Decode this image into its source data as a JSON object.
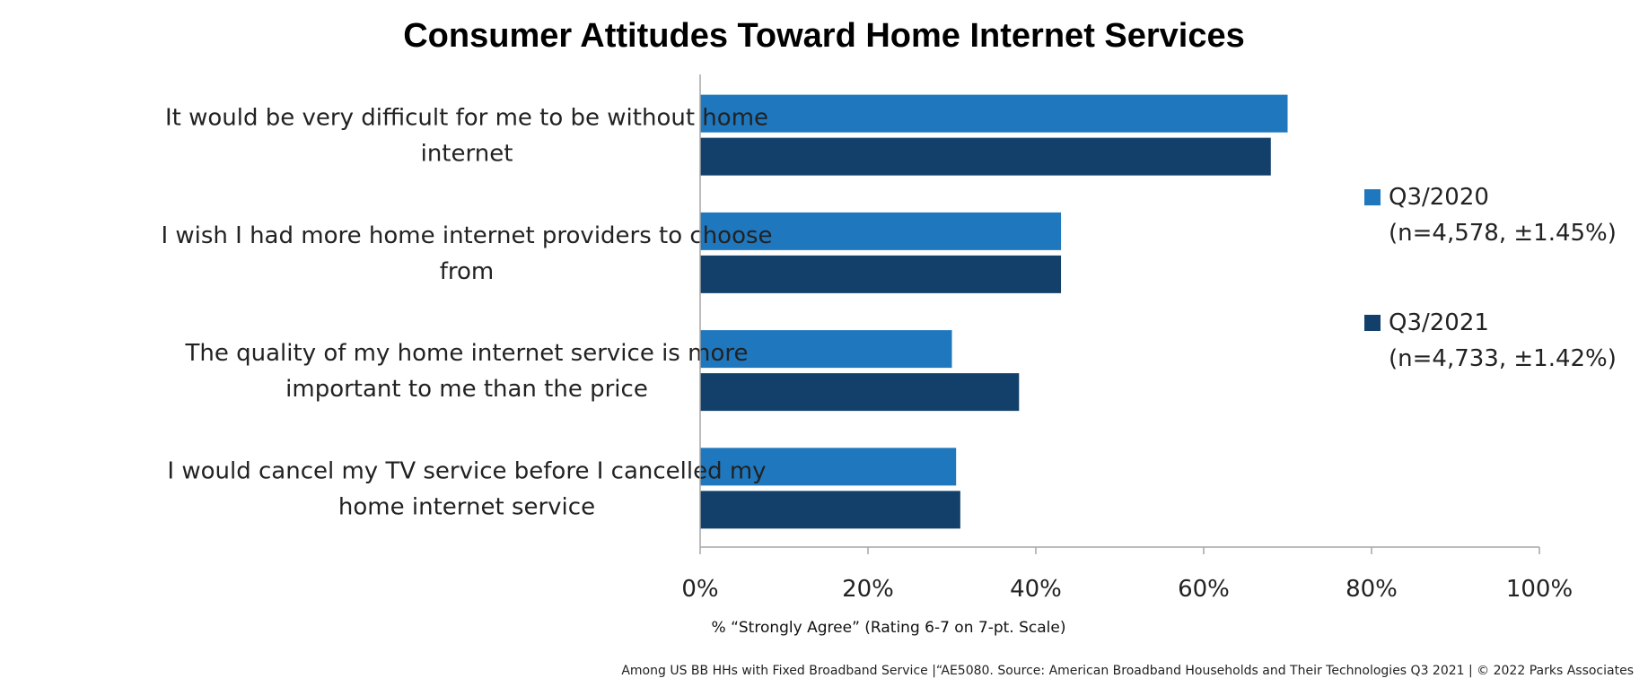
{
  "chart_data": {
    "type": "bar",
    "orientation": "horizontal",
    "title": "Consumer Attitudes Toward Home Internet Services",
    "xlabel": "% “Strongly Agree” (Rating 6-7 on 7-pt. Scale)",
    "ylabel": "",
    "xlim": [
      0,
      100
    ],
    "ticks": [
      "0%",
      "20%",
      "40%",
      "60%",
      "80%",
      "100%"
    ],
    "tick_values": [
      0,
      20,
      40,
      60,
      80,
      100
    ],
    "grid": false,
    "legend_position": "right",
    "categories": [
      [
        "It would be very difficult for me to be without home",
        "internet"
      ],
      [
        "I wish I had more home internet providers to choose",
        "from"
      ],
      [
        "The quality of my home internet service is more",
        "important to me than the price"
      ],
      [
        "I would cancel my TV service before I cancelled my",
        "home internet service"
      ]
    ],
    "series": [
      {
        "name": [
          "Q3/2020",
          "(n=4,578, ±1.45%)"
        ],
        "color": "#1f77be",
        "values": [
          70,
          43,
          30,
          30.5
        ]
      },
      {
        "name": [
          "Q3/2021",
          "(n=4,733, ±1.42%)"
        ],
        "color": "#13406b",
        "values": [
          68,
          43,
          38,
          31
        ]
      }
    ],
    "footnote": "Among US BB HHs with Fixed Broadband Service |“AE5080. Source: American Broadband Households and Their Technologies Q3 2021 | © 2022 Parks Associates"
  }
}
